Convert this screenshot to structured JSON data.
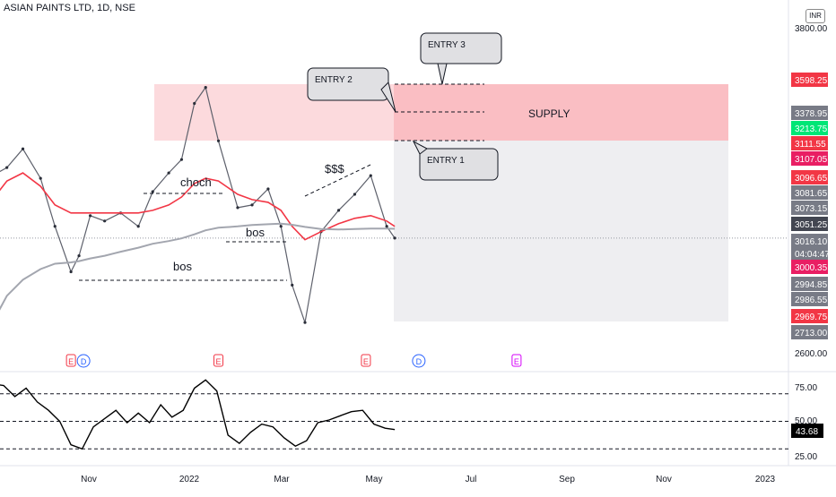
{
  "header": {
    "title": "ASIAN PAINTS LTD, 1D, NSE",
    "currency": "INR"
  },
  "chart_data": [
    {
      "type": "candlestick",
      "panel": "price",
      "y_axis_ticks": [
        "3800.00",
        "2600.00"
      ],
      "ylim": [
        2600,
        3850
      ],
      "x_axis_ticks": [
        "Nov",
        "2022",
        "Mar",
        "May",
        "Jul",
        "Sep",
        "Nov",
        "2023"
      ],
      "series": [
        {
          "name": "",
          "kind": "price-close",
          "x": [
            "2021-09-01",
            "2021-09-10",
            "2021-09-20",
            "2021-10-01",
            "2021-10-10",
            "2021-10-20",
            "2021-10-25",
            "2021-11-01",
            "2021-11-10",
            "2021-11-20",
            "2021-12-01",
            "2021-12-10",
            "2021-12-20",
            "2021-12-28",
            "2022-01-05",
            "2022-01-12",
            "2022-01-20",
            "2022-02-01",
            "2022-02-10",
            "2022-02-20",
            "2022-02-28",
            "2022-03-07",
            "2022-03-15",
            "2022-03-25",
            "2022-04-05",
            "2022-04-15",
            "2022-04-25",
            "2022-05-05",
            "2022-05-10"
          ],
          "values": [
            3250,
            3280,
            3350,
            3240,
            3060,
            2890,
            2950,
            3100,
            3080,
            3110,
            3060,
            3190,
            3260,
            3310,
            3520,
            3580,
            3380,
            3130,
            3140,
            3200,
            3060,
            2840,
            2700,
            3040,
            3120,
            3180,
            3250,
            3060,
            3016
          ]
        },
        {
          "name": "",
          "kind": "moving-average-red",
          "values": [
            3160,
            3230,
            3260,
            3210,
            3140,
            3110,
            3110,
            3110,
            3110,
            3110,
            3110,
            3120,
            3140,
            3170,
            3220,
            3240,
            3230,
            3180,
            3160,
            3150,
            3120,
            3060,
            3010,
            3040,
            3070,
            3090,
            3100,
            3080,
            3060
          ]
        },
        {
          "name": "",
          "kind": "moving-average-grey",
          "values": [
            2700,
            2800,
            2860,
            2900,
            2920,
            2925,
            2930,
            2940,
            2950,
            2965,
            2980,
            2995,
            3005,
            3015,
            3030,
            3045,
            3055,
            3060,
            3065,
            3068,
            3070,
            3066,
            3058,
            3050,
            3048,
            3050,
            3052,
            3052,
            3051
          ]
        }
      ],
      "price_labels": [
        {
          "value": "3598.25",
          "color": "#f23645"
        },
        {
          "value": "3378.95",
          "color": "#787b86"
        },
        {
          "value": "3213.75",
          "color": "#00e676"
        },
        {
          "value": "3111.55",
          "color": "#f23645"
        },
        {
          "value": "3107.05",
          "color": "#e91e63"
        },
        {
          "value": "3096.65",
          "color": "#f23645"
        },
        {
          "value": "3081.65",
          "color": "#787b86"
        },
        {
          "value": "3073.15",
          "color": "#787b86"
        },
        {
          "value": "3051.25",
          "color": "#434651"
        },
        {
          "value": "3016.10",
          "color": "#787b86"
        },
        {
          "value": "04:04:47",
          "color": "#787b86"
        },
        {
          "value": "3000.35",
          "color": "#e91e63"
        },
        {
          "value": "2994.85",
          "color": "#787b86"
        },
        {
          "value": "2986.55",
          "color": "#787b86"
        },
        {
          "value": "2969.75",
          "color": "#f23645"
        },
        {
          "value": "2713.00",
          "color": "#787b86"
        }
      ],
      "annotations": {
        "supply_label": "SUPPLY",
        "entry_1": "ENTRY 1",
        "entry_2": "ENTRY 2",
        "entry_3": "ENTRY 3",
        "choch": "choch",
        "bos_upper": "bos",
        "bos_lower": "bos",
        "liquidity": "$$$"
      },
      "event_markers": [
        {
          "date": "2021-10-20",
          "labels": [
            "E",
            "D"
          ]
        },
        {
          "date": "2022-01-20",
          "labels": [
            "E"
          ]
        },
        {
          "date": "2022-04-22",
          "labels": [
            "E"
          ]
        },
        {
          "date": "2022-05-25",
          "labels": [
            "D"
          ]
        },
        {
          "date": "2022-07-25",
          "labels": [
            "E"
          ]
        }
      ],
      "colors": {
        "supply_zone": "#f7a8ad",
        "target_zone": "#eeeef1",
        "accent_red": "#f23645",
        "accent_pink": "#e91e63"
      }
    },
    {
      "type": "line",
      "panel": "oscillator",
      "y_axis_ticks": [
        "75.00",
        "50.00",
        "25.00"
      ],
      "ylim": [
        20,
        85
      ],
      "levels": [
        70,
        50,
        30
      ],
      "last_value": "43.68",
      "x": [
        "2021-09-01",
        "2021-09-08",
        "2021-09-15",
        "2021-09-22",
        "2021-09-29",
        "2021-10-06",
        "2021-10-13",
        "2021-10-20",
        "2021-10-27",
        "2021-11-03",
        "2021-11-10",
        "2021-11-17",
        "2021-11-24",
        "2021-12-01",
        "2021-12-08",
        "2021-12-15",
        "2021-12-22",
        "2021-12-29",
        "2022-01-05",
        "2022-01-12",
        "2022-01-19",
        "2022-01-26",
        "2022-02-02",
        "2022-02-09",
        "2022-02-16",
        "2022-02-23",
        "2022-03-02",
        "2022-03-09",
        "2022-03-16",
        "2022-03-23",
        "2022-03-30",
        "2022-04-06",
        "2022-04-13",
        "2022-04-20",
        "2022-04-27",
        "2022-05-04",
        "2022-05-10"
      ],
      "values": [
        77,
        76,
        68,
        74,
        64,
        58,
        50,
        33,
        30,
        46,
        52,
        58,
        49,
        56,
        49,
        62,
        53,
        58,
        74,
        80,
        72,
        40,
        34,
        42,
        48,
        46,
        38,
        32,
        36,
        49,
        51,
        54,
        57,
        58,
        48,
        45,
        44
      ]
    }
  ]
}
